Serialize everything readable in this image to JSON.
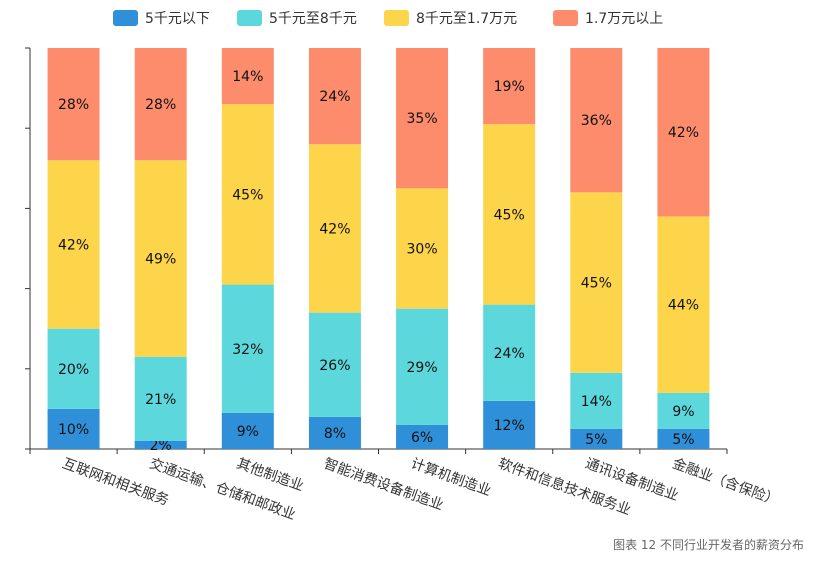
{
  "chart_data": {
    "type": "bar",
    "stacked": true,
    "categories": [
      "互联网和相关服务",
      "交通运输、仓储和邮政业",
      "其他制造业",
      "智能消费设备制造业",
      "计算机制造业",
      "软件和信息技术服务业",
      "通讯设备制造业",
      "金融业（含保险）"
    ],
    "series": [
      {
        "name": "5千元以下",
        "color": "#2f8fd8",
        "values": [
          10,
          2,
          9,
          8,
          6,
          12,
          5,
          5
        ]
      },
      {
        "name": "5千元至8千元",
        "color": "#5cd8dd",
        "values": [
          20,
          21,
          32,
          26,
          29,
          24,
          14,
          9
        ]
      },
      {
        "name": "8千元至1.7万元",
        "color": "#fcd54b",
        "values": [
          42,
          49,
          45,
          42,
          30,
          45,
          45,
          44
        ]
      },
      {
        "name": "1.7万元以上",
        "color": "#fc8c6c",
        "values": [
          28,
          28,
          14,
          24,
          35,
          19,
          36,
          42
        ]
      }
    ],
    "value_suffix": "%",
    "ylim": [
      0,
      100
    ],
    "legend_position": "top-center",
    "grid": false
  },
  "caption": "图表 12  不同行业开发者的薪资分布"
}
